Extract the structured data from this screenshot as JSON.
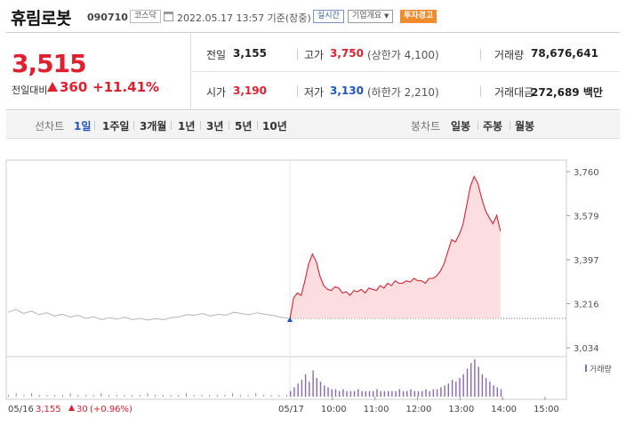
{
  "header": {
    "stock_name": "휴림로봇",
    "stock_code": "090710",
    "market": "코스닥",
    "timestamp": "2022.05.17 13:57  기준(장중)",
    "realtime_button": "실시간",
    "company_button": "기업개요",
    "company_button_icon": "chevron-down-icon",
    "warning_badge": "투자경고",
    "colors": {
      "up": "#e0202f",
      "down": "#1f55c4",
      "warning": "#f28a2e"
    }
  },
  "summary": {
    "price": "3,515",
    "prev_label": "전일대비",
    "change": "360",
    "change_pct": "+11.41%",
    "prev_close_label": "전일",
    "prev_close": "3,155",
    "high_label": "고가",
    "high": "3,750",
    "upper_limit": "(상한가 4,100)",
    "volume_label": "거래량",
    "volume": "78,676,641",
    "open_label": "시가",
    "open": "3,190",
    "low_label": "저가",
    "low": "3,130",
    "lower_limit": "(하한가 2,210)",
    "amount_label": "거래대금",
    "amount": "272,689 백만"
  },
  "toolbar": {
    "line_label": "선차트",
    "periods": [
      "1일",
      "1주일",
      "3개월",
      "1년",
      "3년",
      "5년",
      "10년"
    ],
    "active_period": "1일",
    "candle_label": "봉차트",
    "candles": [
      "일봉",
      "주봉",
      "월봉"
    ]
  },
  "chart_data": {
    "type": "line",
    "title": "",
    "ylim": [
      3034,
      3760
    ],
    "yticks": [
      "3,760",
      "3,579",
      "3,397",
      "3,216",
      "3,034"
    ],
    "ytick_values": [
      3760,
      3579,
      3397,
      3216,
      3034
    ],
    "xticks": [
      "05/16",
      "05/17",
      "10:00",
      "11:00",
      "12:00",
      "13:00",
      "14:00",
      "15:00"
    ],
    "prev_close_line": 3155,
    "prev_day_series": [
      3180,
      3192,
      3175,
      3185,
      3170,
      3178,
      3165,
      3172,
      3160,
      3168,
      3155,
      3162,
      3150,
      3158,
      3152,
      3160,
      3150,
      3155,
      3148,
      3154,
      3150,
      3158,
      3162,
      3170,
      3168,
      3175,
      3165,
      3172,
      3168,
      3180,
      3175,
      3170,
      3178,
      3172,
      3168,
      3160,
      3155
    ],
    "series": [
      {
        "name": "",
        "values": [
          3150,
          3240,
          3260,
          3250,
          3310,
          3380,
          3420,
          3390,
          3330,
          3290,
          3275,
          3270,
          3285,
          3280,
          3260,
          3265,
          3250,
          3270,
          3265,
          3275,
          3260,
          3280,
          3275,
          3270,
          3290,
          3280,
          3300,
          3290,
          3310,
          3300,
          3300,
          3310,
          3305,
          3320,
          3310,
          3310,
          3300,
          3320,
          3320,
          3330,
          3350,
          3380,
          3430,
          3480,
          3470,
          3500,
          3540,
          3620,
          3700,
          3740,
          3710,
          3650,
          3600,
          3570,
          3545,
          3580,
          3515
        ]
      }
    ],
    "volume_label": "거래량",
    "prev_day_volume": [
      1,
      2,
      1,
      2,
      1,
      1,
      1,
      1,
      2,
      1,
      1,
      1,
      2,
      1,
      1,
      1,
      1,
      1,
      2,
      1,
      1,
      1,
      1,
      2,
      1,
      1,
      1,
      1,
      1,
      2,
      1,
      1,
      2,
      1,
      1,
      1,
      1
    ],
    "volume": [
      3,
      5,
      7,
      9,
      12,
      8,
      14,
      10,
      8,
      6,
      5,
      4,
      4,
      3,
      4,
      3,
      3,
      3,
      4,
      3,
      3,
      3,
      3,
      4,
      3,
      3,
      3,
      3,
      3,
      4,
      3,
      3,
      4,
      3,
      3,
      3,
      4,
      3,
      4,
      4,
      5,
      6,
      7,
      9,
      8,
      10,
      12,
      15,
      18,
      20,
      16,
      12,
      10,
      8,
      6,
      5,
      4
    ],
    "legend_prev_day": "3,155",
    "legend_prev_day_change": "30",
    "legend_prev_day_pct": "(+0.96%)"
  }
}
